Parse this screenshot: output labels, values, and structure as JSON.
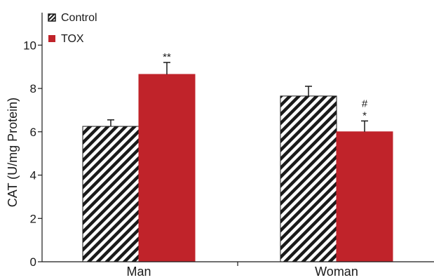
{
  "chart_data": {
    "type": "bar",
    "categories": [
      "Man",
      "Woman"
    ],
    "series": [
      {
        "name": "Control",
        "values": [
          6.25,
          7.65
        ],
        "errors": [
          0.3,
          0.45
        ],
        "fill": "hatched",
        "color": "#1a1a1a"
      },
      {
        "name": "TOX",
        "values": [
          8.65,
          6.0
        ],
        "errors": [
          0.55,
          0.5
        ],
        "fill": "solid",
        "color": "#c0232a"
      }
    ],
    "annotations": [
      {
        "series": 1,
        "category": 0,
        "lines": [
          "**"
        ]
      },
      {
        "series": 1,
        "category": 1,
        "lines": [
          "#",
          "*"
        ]
      }
    ],
    "title": "",
    "xlabel": "",
    "ylabel": "CAT (U/mg Protein)",
    "ylim": [
      0,
      11.5
    ],
    "yticks": [
      0,
      2,
      4,
      6,
      8,
      10
    ],
    "grid": false,
    "legend_position": "top-left"
  }
}
